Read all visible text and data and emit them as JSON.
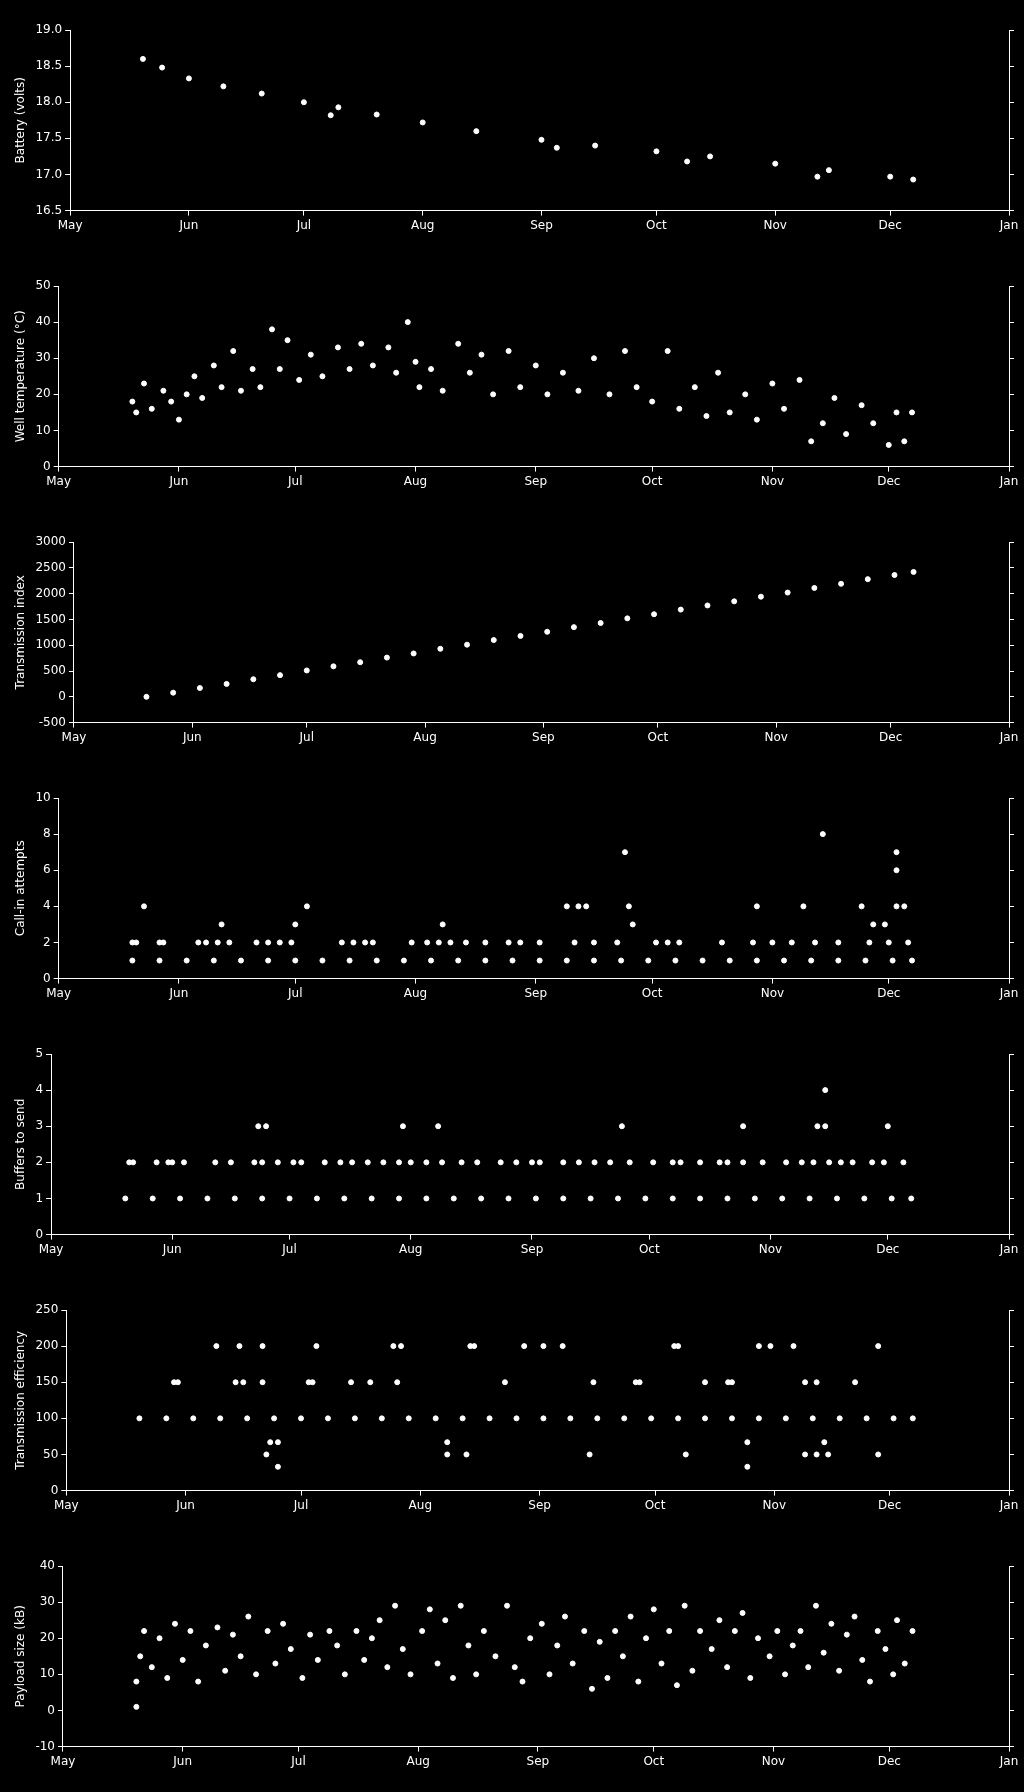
{
  "chart_data": [
    {
      "type": "scatter",
      "ylabel": "Battery (volts)",
      "marker": "circle",
      "color": "#ffffff",
      "xlim": [
        "2000-05-01",
        "2001-01-01"
      ],
      "xticks": [
        {
          "value": "2000-05-01",
          "label": "May"
        },
        {
          "value": "2000-06-01",
          "label": "Jun"
        },
        {
          "value": "2000-07-01",
          "label": "Jul"
        },
        {
          "value": "2000-08-01",
          "label": "Aug"
        },
        {
          "value": "2000-09-01",
          "label": "Sep"
        },
        {
          "value": "2000-10-01",
          "label": "Oct"
        },
        {
          "value": "2000-11-01",
          "label": "Nov"
        },
        {
          "value": "2000-12-01",
          "label": "Dec"
        },
        {
          "value": "2001-01-01",
          "label": "Jan"
        }
      ],
      "ylim": [
        16.5,
        19.0
      ],
      "yticks": [
        16.5,
        {
          "value": 17,
          "label": "17.0"
        },
        17.5,
        {
          "value": 18,
          "label": "18.0"
        },
        18.5,
        {
          "value": 19,
          "label": "19.0"
        }
      ],
      "x": [
        "2000-05-20",
        "2000-05-25",
        "2000-06-01",
        "2000-06-10",
        "2000-06-20",
        "2000-07-01",
        "2000-07-10",
        "2000-07-20",
        "2000-08-01",
        "2000-08-15",
        "2000-09-01",
        "2000-09-15",
        "2000-10-01",
        "2000-10-15",
        "2000-11-01",
        "2000-11-15",
        "2000-12-01",
        "2000-12-07",
        "2000-07-08",
        "2000-09-05",
        "2000-10-09",
        "2000-11-12"
      ],
      "values": [
        18.6,
        18.48,
        18.33,
        18.22,
        18.12,
        18.0,
        17.93,
        17.83,
        17.72,
        17.6,
        17.48,
        17.4,
        17.32,
        17.25,
        17.15,
        17.06,
        16.97,
        16.93,
        17.82,
        17.37,
        17.18,
        16.97
      ]
    },
    {
      "type": "scatter",
      "ylabel": "Well temperature (°C)",
      "marker": "circle",
      "color": "#ffffff",
      "xlim": [
        "2000-05-01",
        "2001-01-01"
      ],
      "xticks": [
        {
          "value": "2000-05-01",
          "label": "May"
        },
        {
          "value": "2000-06-01",
          "label": "Jun"
        },
        {
          "value": "2000-07-01",
          "label": "Jul"
        },
        {
          "value": "2000-08-01",
          "label": "Aug"
        },
        {
          "value": "2000-09-01",
          "label": "Sep"
        },
        {
          "value": "2000-10-01",
          "label": "Oct"
        },
        {
          "value": "2000-11-01",
          "label": "Nov"
        },
        {
          "value": "2000-12-01",
          "label": "Dec"
        },
        {
          "value": "2001-01-01",
          "label": "Jan"
        }
      ],
      "ylim": [
        0,
        50
      ],
      "yticks": [
        0,
        10,
        20,
        30,
        40,
        50
      ],
      "x": [
        "2000-05-20",
        "2000-05-21",
        "2000-05-23",
        "2000-05-25",
        "2000-05-28",
        "2000-05-30",
        "2000-06-01",
        "2000-06-03",
        "2000-06-05",
        "2000-06-07",
        "2000-06-10",
        "2000-06-12",
        "2000-06-15",
        "2000-06-17",
        "2000-06-20",
        "2000-06-22",
        "2000-06-25",
        "2000-06-27",
        "2000-06-29",
        "2000-07-02",
        "2000-07-05",
        "2000-07-08",
        "2000-07-12",
        "2000-07-15",
        "2000-07-18",
        "2000-07-21",
        "2000-07-25",
        "2000-07-27",
        "2000-07-30",
        "2000-08-01",
        "2000-08-02",
        "2000-08-05",
        "2000-08-08",
        "2000-08-12",
        "2000-08-15",
        "2000-08-18",
        "2000-08-21",
        "2000-08-25",
        "2000-08-28",
        "2000-09-01",
        "2000-09-04",
        "2000-09-08",
        "2000-09-12",
        "2000-09-16",
        "2000-09-20",
        "2000-09-24",
        "2000-09-27",
        "2000-10-01",
        "2000-10-05",
        "2000-10-08",
        "2000-10-12",
        "2000-10-15",
        "2000-10-18",
        "2000-10-21",
        "2000-10-25",
        "2000-10-28",
        "2000-11-01",
        "2000-11-04",
        "2000-11-08",
        "2000-11-11",
        "2000-11-14",
        "2000-11-17",
        "2000-11-20",
        "2000-11-24",
        "2000-11-27",
        "2000-12-01",
        "2000-12-03",
        "2000-12-05",
        "2000-12-07"
      ],
      "values": [
        18,
        15,
        23,
        16,
        21,
        18,
        13,
        20,
        25,
        19,
        28,
        22,
        32,
        21,
        27,
        22,
        38,
        27,
        35,
        24,
        31,
        25,
        33,
        27,
        34,
        28,
        33,
        26,
        40,
        29,
        22,
        27,
        21,
        34,
        26,
        31,
        20,
        32,
        22,
        28,
        20,
        26,
        21,
        30,
        20,
        32,
        22,
        18,
        32,
        16,
        22,
        14,
        26,
        15,
        20,
        13,
        23,
        16,
        24,
        7,
        12,
        19,
        9,
        17,
        12,
        6,
        15,
        7,
        15
      ]
    },
    {
      "type": "scatter",
      "ylabel": "Transmission index",
      "marker": "circle",
      "color": "#ffffff",
      "xlim": [
        "2000-05-01",
        "2001-01-01"
      ],
      "xticks": [
        {
          "value": "2000-05-01",
          "label": "May"
        },
        {
          "value": "2000-06-01",
          "label": "Jun"
        },
        {
          "value": "2000-07-01",
          "label": "Jul"
        },
        {
          "value": "2000-08-01",
          "label": "Aug"
        },
        {
          "value": "2000-09-01",
          "label": "Sep"
        },
        {
          "value": "2000-10-01",
          "label": "Oct"
        },
        {
          "value": "2000-11-01",
          "label": "Nov"
        },
        {
          "value": "2000-12-01",
          "label": "Dec"
        },
        {
          "value": "2001-01-01",
          "label": "Jan"
        }
      ],
      "ylim": [
        -500,
        3000
      ],
      "yticks": [
        -500,
        0,
        500,
        1000,
        1500,
        2000,
        2500,
        3000
      ],
      "x": [
        "2000-05-20",
        "2000-05-27",
        "2000-06-03",
        "2000-06-10",
        "2000-06-17",
        "2000-06-24",
        "2000-07-01",
        "2000-07-08",
        "2000-07-15",
        "2000-07-22",
        "2000-07-29",
        "2000-08-05",
        "2000-08-12",
        "2000-08-19",
        "2000-08-26",
        "2000-09-02",
        "2000-09-09",
        "2000-09-16",
        "2000-09-23",
        "2000-09-30",
        "2000-10-07",
        "2000-10-14",
        "2000-10-21",
        "2000-10-28",
        "2000-11-04",
        "2000-11-11",
        "2000-11-18",
        "2000-11-25",
        "2000-12-02",
        "2000-12-07"
      ],
      "values": [
        0,
        80,
        170,
        250,
        340,
        420,
        510,
        590,
        670,
        760,
        840,
        930,
        1010,
        1100,
        1180,
        1260,
        1350,
        1430,
        1520,
        1600,
        1690,
        1770,
        1850,
        1940,
        2020,
        2110,
        2190,
        2280,
        2360,
        2420
      ]
    },
    {
      "type": "scatter",
      "ylabel": "Call-in attempts",
      "marker": "circle",
      "color": "#ffffff",
      "xlim": [
        "2000-05-01",
        "2001-01-01"
      ],
      "xticks": [
        {
          "value": "2000-05-01",
          "label": "May"
        },
        {
          "value": "2000-06-01",
          "label": "Jun"
        },
        {
          "value": "2000-07-01",
          "label": "Jul"
        },
        {
          "value": "2000-08-01",
          "label": "Aug"
        },
        {
          "value": "2000-09-01",
          "label": "Sep"
        },
        {
          "value": "2000-10-01",
          "label": "Oct"
        },
        {
          "value": "2000-11-01",
          "label": "Nov"
        },
        {
          "value": "2000-12-01",
          "label": "Dec"
        },
        {
          "value": "2001-01-01",
          "label": "Jan"
        }
      ],
      "ylim": [
        0,
        10
      ],
      "yticks": [
        0,
        2,
        4,
        6,
        8,
        10
      ],
      "x": [
        "2000-05-20",
        "2000-05-27",
        "2000-06-03",
        "2000-06-10",
        "2000-06-17",
        "2000-06-24",
        "2000-07-01",
        "2000-07-08",
        "2000-07-15",
        "2000-07-22",
        "2000-07-29",
        "2000-08-05",
        "2000-08-12",
        "2000-08-19",
        "2000-08-26",
        "2000-09-02",
        "2000-09-09",
        "2000-09-16",
        "2000-09-23",
        "2000-09-30",
        "2000-10-07",
        "2000-10-14",
        "2000-10-21",
        "2000-10-28",
        "2000-11-04",
        "2000-11-11",
        "2000-11-18",
        "2000-11-25",
        "2000-12-02",
        "2000-12-07",
        "2000-05-20",
        "2000-05-21",
        "2000-05-23",
        "2000-05-27",
        "2000-05-28",
        "2000-06-06",
        "2000-06-08",
        "2000-06-11",
        "2000-06-12",
        "2000-06-14",
        "2000-06-21",
        "2000-06-24",
        "2000-06-27",
        "2000-06-30",
        "2000-07-01",
        "2000-07-04",
        "2000-07-13",
        "2000-07-16",
        "2000-07-19",
        "2000-07-21",
        "2000-07-31",
        "2000-08-04",
        "2000-08-07",
        "2000-08-08",
        "2000-08-10",
        "2000-08-14",
        "2000-08-19",
        "2000-08-25",
        "2000-08-28",
        "2000-09-02",
        "2000-09-09",
        "2000-09-11",
        "2000-09-12",
        "2000-09-14",
        "2000-09-16",
        "2000-09-22",
        "2000-09-24",
        "2000-09-25",
        "2000-09-26",
        "2000-10-02",
        "2000-10-05",
        "2000-10-08",
        "2000-10-19",
        "2000-10-27",
        "2000-10-28",
        "2000-11-01",
        "2000-11-06",
        "2000-11-09",
        "2000-11-12",
        "2000-11-14",
        "2000-11-18",
        "2000-11-24",
        "2000-11-26",
        "2000-11-27",
        "2000-11-30",
        "2000-12-01",
        "2000-12-03",
        "2000-12-03",
        "2000-12-03",
        "2000-12-05",
        "2000-12-06"
      ],
      "values": [
        1,
        1,
        1,
        1,
        1,
        1,
        1,
        1,
        1,
        1,
        1,
        1,
        1,
        1,
        1,
        1,
        1,
        1,
        1,
        1,
        1,
        1,
        1,
        1,
        1,
        1,
        1,
        1,
        1,
        1,
        2,
        2,
        4,
        2,
        2,
        2,
        2,
        2,
        3,
        2,
        2,
        2,
        2,
        2,
        3,
        4,
        2,
        2,
        2,
        2,
        2,
        2,
        2,
        3,
        2,
        2,
        2,
        2,
        2,
        2,
        4,
        2,
        4,
        4,
        2,
        2,
        7,
        4,
        3,
        2,
        2,
        2,
        2,
        2,
        4,
        2,
        2,
        4,
        2,
        8,
        2,
        4,
        2,
        3,
        3,
        2,
        7,
        6,
        4,
        4,
        2
      ]
    },
    {
      "type": "scatter",
      "ylabel": "Buffers to send",
      "marker": "circle",
      "color": "#ffffff",
      "xlim": [
        "2000-05-01",
        "2001-01-01"
      ],
      "xticks": [
        {
          "value": "2000-05-01",
          "label": "May"
        },
        {
          "value": "2000-06-01",
          "label": "Jun"
        },
        {
          "value": "2000-07-01",
          "label": "Jul"
        },
        {
          "value": "2000-08-01",
          "label": "Aug"
        },
        {
          "value": "2000-09-01",
          "label": "Sep"
        },
        {
          "value": "2000-10-01",
          "label": "Oct"
        },
        {
          "value": "2000-11-01",
          "label": "Nov"
        },
        {
          "value": "2000-12-01",
          "label": "Dec"
        },
        {
          "value": "2001-01-01",
          "label": "Jan"
        }
      ],
      "ylim": [
        0,
        5
      ],
      "yticks": [
        0,
        1,
        2,
        3,
        4,
        5
      ],
      "x": [
        "2000-05-20",
        "2000-05-27",
        "2000-06-03",
        "2000-06-10",
        "2000-06-17",
        "2000-06-24",
        "2000-07-01",
        "2000-07-08",
        "2000-07-15",
        "2000-07-22",
        "2000-07-29",
        "2000-08-05",
        "2000-08-12",
        "2000-08-19",
        "2000-08-26",
        "2000-09-02",
        "2000-09-09",
        "2000-09-16",
        "2000-09-23",
        "2000-09-30",
        "2000-10-07",
        "2000-10-14",
        "2000-10-21",
        "2000-10-28",
        "2000-11-04",
        "2000-11-11",
        "2000-11-18",
        "2000-11-25",
        "2000-12-02",
        "2000-12-07",
        "2000-05-21",
        "2000-05-22",
        "2000-05-28",
        "2000-05-31",
        "2000-06-01",
        "2000-06-04",
        "2000-06-12",
        "2000-06-16",
        "2000-06-22",
        "2000-06-24",
        "2000-06-28",
        "2000-07-02",
        "2000-07-04",
        "2000-07-10",
        "2000-07-14",
        "2000-07-17",
        "2000-07-21",
        "2000-07-25",
        "2000-07-29",
        "2000-08-01",
        "2000-08-05",
        "2000-08-09",
        "2000-08-14",
        "2000-08-18",
        "2000-08-24",
        "2000-08-28",
        "2000-09-01",
        "2000-09-03",
        "2000-09-09",
        "2000-09-13",
        "2000-09-17",
        "2000-09-21",
        "2000-09-26",
        "2000-10-02",
        "2000-10-07",
        "2000-10-09",
        "2000-10-14",
        "2000-10-19",
        "2000-10-21",
        "2000-10-25",
        "2000-10-30",
        "2000-11-05",
        "2000-11-09",
        "2000-11-12",
        "2000-11-16",
        "2000-11-19",
        "2000-11-22",
        "2000-11-27",
        "2000-11-30",
        "2000-12-05",
        "2000-06-23",
        "2000-06-25",
        "2000-07-30",
        "2000-08-08",
        "2000-09-24",
        "2000-10-25",
        "2000-11-13",
        "2000-11-15",
        "2000-12-01",
        "2000-11-15"
      ],
      "values": [
        1,
        1,
        1,
        1,
        1,
        1,
        1,
        1,
        1,
        1,
        1,
        1,
        1,
        1,
        1,
        1,
        1,
        1,
        1,
        1,
        1,
        1,
        1,
        1,
        1,
        1,
        1,
        1,
        1,
        1,
        2,
        2,
        2,
        2,
        2,
        2,
        2,
        2,
        2,
        2,
        2,
        2,
        2,
        2,
        2,
        2,
        2,
        2,
        2,
        2,
        2,
        2,
        2,
        2,
        2,
        2,
        2,
        2,
        2,
        2,
        2,
        2,
        2,
        2,
        2,
        2,
        2,
        2,
        2,
        2,
        2,
        2,
        2,
        2,
        2,
        2,
        2,
        2,
        2,
        2,
        3,
        3,
        3,
        3,
        3,
        3,
        3,
        3,
        3,
        4
      ]
    },
    {
      "type": "scatter",
      "ylabel": "Transmission efficiency",
      "marker": "circle",
      "color": "#ffffff",
      "xlim": [
        "2000-05-01",
        "2001-01-01"
      ],
      "xticks": [
        {
          "value": "2000-05-01",
          "label": "May"
        },
        {
          "value": "2000-06-01",
          "label": "Jun"
        },
        {
          "value": "2000-07-01",
          "label": "Jul"
        },
        {
          "value": "2000-08-01",
          "label": "Aug"
        },
        {
          "value": "2000-09-01",
          "label": "Sep"
        },
        {
          "value": "2000-10-01",
          "label": "Oct"
        },
        {
          "value": "2000-11-01",
          "label": "Nov"
        },
        {
          "value": "2000-12-01",
          "label": "Dec"
        },
        {
          "value": "2001-01-01",
          "label": "Jan"
        }
      ],
      "ylim": [
        0,
        250
      ],
      "yticks": [
        0,
        50,
        100,
        150,
        200,
        250
      ],
      "x": [
        "2000-05-20",
        "2000-05-27",
        "2000-06-03",
        "2000-06-10",
        "2000-06-17",
        "2000-06-24",
        "2000-07-01",
        "2000-07-08",
        "2000-07-15",
        "2000-07-22",
        "2000-07-29",
        "2000-08-05",
        "2000-08-12",
        "2000-08-19",
        "2000-08-26",
        "2000-09-02",
        "2000-09-09",
        "2000-09-16",
        "2000-09-23",
        "2000-09-30",
        "2000-10-07",
        "2000-10-14",
        "2000-10-21",
        "2000-10-28",
        "2000-11-04",
        "2000-11-11",
        "2000-11-18",
        "2000-11-25",
        "2000-12-02",
        "2000-12-07",
        "2000-05-29",
        "2000-05-30",
        "2000-06-14",
        "2000-06-16",
        "2000-06-21",
        "2000-07-03",
        "2000-07-04",
        "2000-07-14",
        "2000-07-19",
        "2000-07-26",
        "2000-08-23",
        "2000-09-15",
        "2000-09-26",
        "2000-09-27",
        "2000-10-14",
        "2000-10-20",
        "2000-10-21",
        "2000-11-09",
        "2000-11-12",
        "2000-11-22",
        "2000-06-09",
        "2000-06-15",
        "2000-06-21",
        "2000-07-05",
        "2000-07-25",
        "2000-07-27",
        "2000-08-14",
        "2000-08-15",
        "2000-08-28",
        "2000-09-02",
        "2000-09-07",
        "2000-10-06",
        "2000-10-07",
        "2000-10-28",
        "2000-10-31",
        "2000-11-06",
        "2000-11-28",
        "2000-06-22",
        "2000-08-08",
        "2000-08-13",
        "2000-09-14",
        "2000-10-09",
        "2000-11-09",
        "2000-11-12",
        "2000-11-15",
        "2000-11-28",
        "2000-06-23",
        "2000-06-25",
        "2000-08-08",
        "2000-10-25",
        "2000-11-14",
        "2000-06-25",
        "2000-10-25"
      ],
      "values": [
        100,
        100,
        100,
        100,
        100,
        100,
        100,
        100,
        100,
        100,
        100,
        100,
        100,
        100,
        100,
        100,
        100,
        100,
        100,
        100,
        100,
        100,
        100,
        100,
        100,
        100,
        100,
        100,
        100,
        100,
        150,
        150,
        150,
        150,
        150,
        150,
        150,
        150,
        150,
        150,
        150,
        150,
        150,
        150,
        150,
        150,
        150,
        150,
        150,
        150,
        200,
        200,
        200,
        200,
        200,
        200,
        200,
        200,
        200,
        200,
        200,
        200,
        200,
        200,
        200,
        200,
        200,
        50,
        50,
        50,
        50,
        50,
        50,
        50,
        50,
        50,
        67,
        67,
        67,
        67,
        67,
        33,
        33
      ]
    },
    {
      "type": "scatter",
      "ylabel": "Payload size (kB)",
      "marker": "circle",
      "color": "#ffffff",
      "xlim": [
        "2000-05-01",
        "2001-01-01"
      ],
      "xticks": [
        {
          "value": "2000-05-01",
          "label": "May"
        },
        {
          "value": "2000-06-01",
          "label": "Jun"
        },
        {
          "value": "2000-07-01",
          "label": "Jul"
        },
        {
          "value": "2000-08-01",
          "label": "Aug"
        },
        {
          "value": "2000-09-01",
          "label": "Sep"
        },
        {
          "value": "2000-10-01",
          "label": "Oct"
        },
        {
          "value": "2000-11-01",
          "label": "Nov"
        },
        {
          "value": "2000-12-01",
          "label": "Dec"
        },
        {
          "value": "2001-01-01",
          "label": "Jan"
        }
      ],
      "ylim": [
        -10,
        40
      ],
      "yticks": [
        -10,
        0,
        10,
        20,
        30,
        40
      ],
      "x": [
        "2000-05-20",
        "2000-05-20",
        "2000-05-21",
        "2000-05-22",
        "2000-05-24",
        "2000-05-26",
        "2000-05-28",
        "2000-05-30",
        "2000-06-01",
        "2000-06-03",
        "2000-06-05",
        "2000-06-07",
        "2000-06-10",
        "2000-06-12",
        "2000-06-14",
        "2000-06-16",
        "2000-06-18",
        "2000-06-20",
        "2000-06-23",
        "2000-06-25",
        "2000-06-27",
        "2000-06-29",
        "2000-07-02",
        "2000-07-04",
        "2000-07-06",
        "2000-07-09",
        "2000-07-11",
        "2000-07-13",
        "2000-07-16",
        "2000-07-18",
        "2000-07-20",
        "2000-07-22",
        "2000-07-24",
        "2000-07-26",
        "2000-07-28",
        "2000-07-30",
        "2000-08-02",
        "2000-08-04",
        "2000-08-06",
        "2000-08-08",
        "2000-08-10",
        "2000-08-12",
        "2000-08-14",
        "2000-08-16",
        "2000-08-18",
        "2000-08-21",
        "2000-08-24",
        "2000-08-26",
        "2000-08-28",
        "2000-08-30",
        "2000-09-02",
        "2000-09-04",
        "2000-09-06",
        "2000-09-08",
        "2000-09-10",
        "2000-09-13",
        "2000-09-15",
        "2000-09-17",
        "2000-09-19",
        "2000-09-21",
        "2000-09-23",
        "2000-09-25",
        "2000-09-27",
        "2000-09-29",
        "2000-10-01",
        "2000-10-03",
        "2000-10-05",
        "2000-10-07",
        "2000-10-09",
        "2000-10-11",
        "2000-10-13",
        "2000-10-16",
        "2000-10-18",
        "2000-10-20",
        "2000-10-22",
        "2000-10-24",
        "2000-10-26",
        "2000-10-28",
        "2000-10-31",
        "2000-11-02",
        "2000-11-04",
        "2000-11-06",
        "2000-11-08",
        "2000-11-10",
        "2000-11-12",
        "2000-11-14",
        "2000-11-16",
        "2000-11-18",
        "2000-11-20",
        "2000-11-22",
        "2000-11-24",
        "2000-11-26",
        "2000-11-28",
        "2000-11-30",
        "2000-12-02",
        "2000-12-03",
        "2000-12-05",
        "2000-12-07"
      ],
      "values": [
        1,
        8,
        15,
        22,
        12,
        20,
        9,
        24,
        14,
        22,
        8,
        18,
        23,
        11,
        21,
        15,
        26,
        10,
        22,
        13,
        24,
        17,
        9,
        21,
        14,
        22,
        18,
        10,
        22,
        14,
        20,
        25,
        12,
        29,
        17,
        10,
        22,
        28,
        13,
        25,
        9,
        29,
        18,
        10,
        22,
        15,
        29,
        12,
        8,
        20,
        24,
        10,
        18,
        26,
        13,
        22,
        6,
        19,
        9,
        22,
        15,
        26,
        8,
        20,
        28,
        13,
        22,
        7,
        29,
        11,
        22,
        17,
        25,
        12,
        22,
        27,
        9,
        20,
        15,
        22,
        10,
        18,
        22,
        12,
        29,
        16,
        24,
        11,
        21,
        26,
        14,
        8,
        22,
        17,
        10,
        25,
        13,
        22
      ]
    }
  ]
}
